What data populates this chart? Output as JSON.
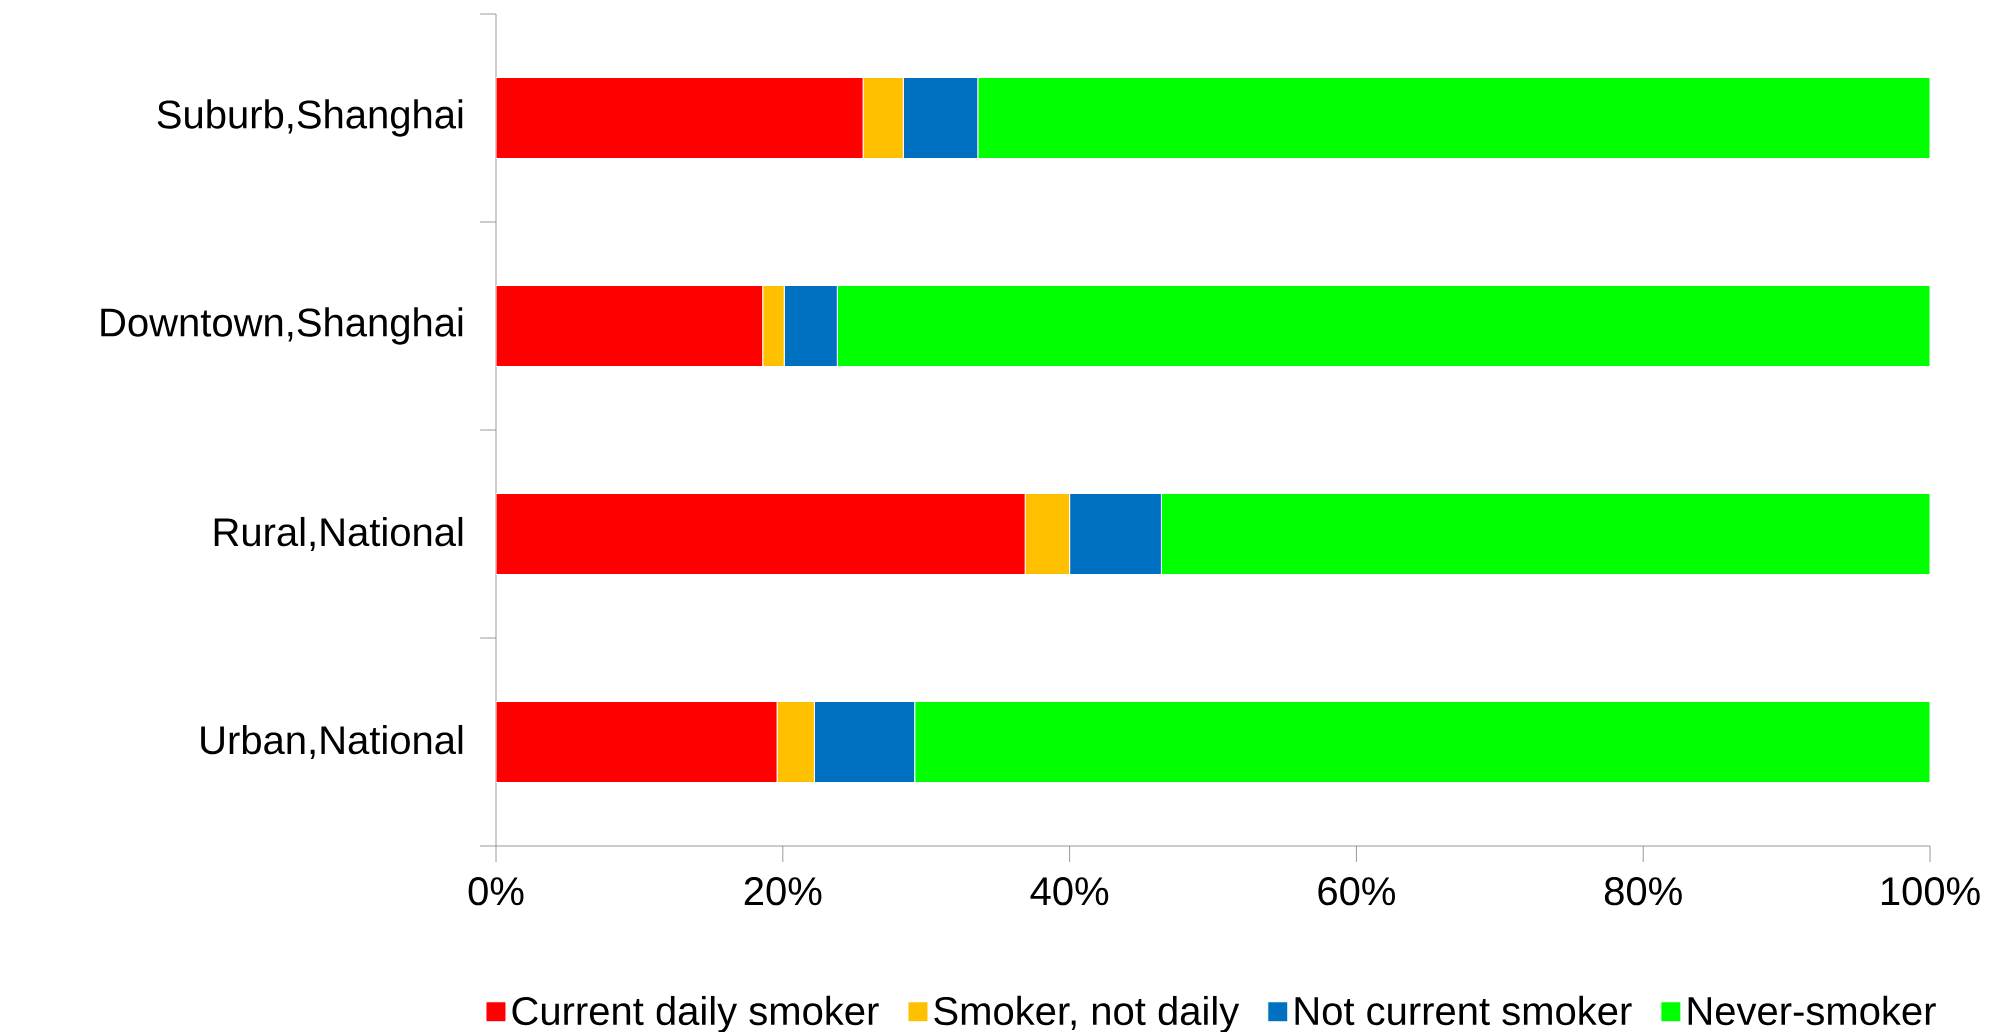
{
  "chart_data": {
    "type": "bar",
    "orientation": "horizontal",
    "stacked": true,
    "categories": [
      "Suburb,Shanghai",
      "Downtown,Shanghai",
      "Rural,National",
      "Urban,National"
    ],
    "series": [
      {
        "name": "Current daily smoker",
        "color": "#ff0000",
        "values": [
          25.6,
          18.6,
          36.9,
          19.6
        ]
      },
      {
        "name": "Smoker, not daily",
        "color": "#ffc000",
        "values": [
          2.8,
          1.5,
          3.1,
          2.6
        ]
      },
      {
        "name": "Not current smoker",
        "color": "#0070c0",
        "values": [
          5.2,
          3.7,
          6.4,
          7.0
        ]
      },
      {
        "name": "Never-smoker",
        "color": "#00ff00",
        "values": [
          66.4,
          76.2,
          53.6,
          70.8
        ]
      }
    ],
    "xlim": [
      0,
      100
    ],
    "xticks": [
      {
        "value": 0,
        "label": "0%"
      },
      {
        "value": 20,
        "label": "20%"
      },
      {
        "value": 40,
        "label": "40%"
      },
      {
        "value": 60,
        "label": "60%"
      },
      {
        "value": 80,
        "label": "80%"
      },
      {
        "value": 100,
        "label": "100%"
      }
    ],
    "legend": "bottom"
  }
}
